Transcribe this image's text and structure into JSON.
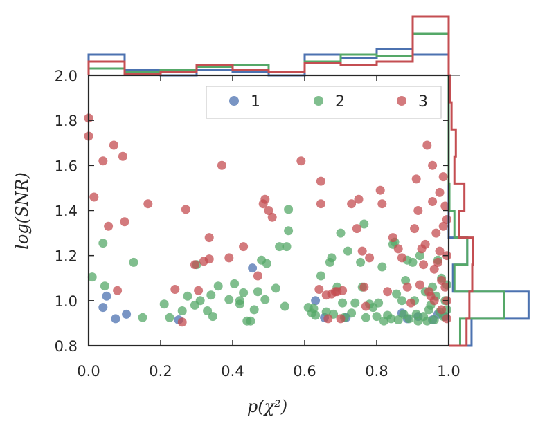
{
  "chart_data": {
    "type": "scatter",
    "xlabel": "p(χ²)",
    "ylabel": "log(SNR)",
    "xlim": [
      0.0,
      1.0
    ],
    "ylim": [
      0.8,
      2.0
    ],
    "x_ticks": [
      0.0,
      0.2,
      0.4,
      0.6,
      0.8,
      1.0
    ],
    "x_tick_labels": [
      "0.0",
      "0.2",
      "0.4",
      "0.6",
      "0.8",
      "1.0"
    ],
    "y_ticks": [
      0.8,
      1.0,
      1.2,
      1.4,
      1.6,
      1.8,
      2.0
    ],
    "y_tick_labels": [
      "0.8",
      "1.0",
      "1.2",
      "1.4",
      "1.6",
      "1.8",
      "2.0"
    ],
    "legend": {
      "location": "top-right",
      "entries": [
        "1",
        "2",
        "3"
      ]
    },
    "series": [
      {
        "name": "1",
        "color": "#4C72B0",
        "points": [
          [
            0.04,
            0.97
          ],
          [
            0.05,
            1.02
          ],
          [
            0.075,
            0.92
          ],
          [
            0.105,
            0.94
          ],
          [
            0.25,
            0.915
          ],
          [
            0.455,
            1.145
          ],
          [
            0.63,
            1.0
          ],
          [
            0.655,
            0.925
          ],
          [
            0.715,
            0.925
          ],
          [
            0.87,
            0.945
          ],
          [
            0.885,
            0.92
          ],
          [
            0.915,
            0.93
          ],
          [
            0.955,
            0.915
          ],
          [
            0.97,
            0.94
          ],
          [
            0.99,
            0.93
          ]
        ]
      },
      {
        "name": "2",
        "color": "#55A868",
        "points": [
          [
            0.01,
            1.105
          ],
          [
            0.04,
            1.255
          ],
          [
            0.045,
            1.065
          ],
          [
            0.125,
            1.17
          ],
          [
            0.15,
            0.925
          ],
          [
            0.21,
            0.985
          ],
          [
            0.225,
            0.925
          ],
          [
            0.26,
            0.955
          ],
          [
            0.275,
            1.02
          ],
          [
            0.295,
            0.98
          ],
          [
            0.3,
            1.16
          ],
          [
            0.31,
            1.0
          ],
          [
            0.33,
            0.955
          ],
          [
            0.34,
            1.025
          ],
          [
            0.345,
            0.93
          ],
          [
            0.36,
            1.065
          ],
          [
            0.39,
            1.005
          ],
          [
            0.405,
            1.075
          ],
          [
            0.42,
            0.985
          ],
          [
            0.42,
            1.0
          ],
          [
            0.43,
            1.035
          ],
          [
            0.44,
            0.91
          ],
          [
            0.45,
            0.91
          ],
          [
            0.46,
            0.96
          ],
          [
            0.47,
            1.04
          ],
          [
            0.48,
            1.18
          ],
          [
            0.49,
            1.005
          ],
          [
            0.495,
            1.165
          ],
          [
            0.52,
            1.055
          ],
          [
            0.53,
            1.24
          ],
          [
            0.545,
            0.975
          ],
          [
            0.55,
            1.24
          ],
          [
            0.555,
            1.31
          ],
          [
            0.555,
            1.405
          ],
          [
            0.61,
            0.97
          ],
          [
            0.62,
            0.945
          ],
          [
            0.625,
            0.965
          ],
          [
            0.63,
            0.935
          ],
          [
            0.645,
            1.11
          ],
          [
            0.66,
            0.95
          ],
          [
            0.67,
            1.17
          ],
          [
            0.675,
            1.19
          ],
          [
            0.68,
            0.94
          ],
          [
            0.69,
            1.06
          ],
          [
            0.7,
            1.3
          ],
          [
            0.705,
            0.99
          ],
          [
            0.71,
            0.925
          ],
          [
            0.72,
            1.22
          ],
          [
            0.73,
            0.945
          ],
          [
            0.74,
            0.99
          ],
          [
            0.755,
            1.17
          ],
          [
            0.76,
            1.06
          ],
          [
            0.765,
            1.34
          ],
          [
            0.77,
            0.925
          ],
          [
            0.78,
            0.985
          ],
          [
            0.79,
            0.97
          ],
          [
            0.8,
            0.93
          ],
          [
            0.805,
            0.99
          ],
          [
            0.815,
            1.15
          ],
          [
            0.82,
            0.91
          ],
          [
            0.83,
            0.935
          ],
          [
            0.84,
            0.92
          ],
          [
            0.845,
            1.25
          ],
          [
            0.85,
            1.26
          ],
          [
            0.855,
            1.03
          ],
          [
            0.86,
            0.915
          ],
          [
            0.87,
            1.0
          ],
          [
            0.875,
            0.94
          ],
          [
            0.88,
            1.09
          ],
          [
            0.885,
            1.18
          ],
          [
            0.89,
            0.92
          ],
          [
            0.9,
            1.17
          ],
          [
            0.905,
            1.0
          ],
          [
            0.91,
            0.94
          ],
          [
            0.915,
            0.91
          ],
          [
            0.92,
            1.2
          ],
          [
            0.93,
            0.93
          ],
          [
            0.935,
            1.04
          ],
          [
            0.94,
            0.91
          ],
          [
            0.945,
            0.96
          ],
          [
            0.95,
            0.98
          ],
          [
            0.955,
            1.06
          ],
          [
            0.96,
            0.915
          ],
          [
            0.965,
            1.02
          ],
          [
            0.97,
            1.18
          ],
          [
            0.975,
            0.95
          ],
          [
            0.98,
            1.1
          ],
          [
            0.985,
            0.93
          ],
          [
            0.99,
            1.0
          ],
          [
            0.995,
            0.96
          ],
          [
            0.995,
            1.07
          ]
        ]
      },
      {
        "name": "3",
        "color": "#C44E52",
        "points": [
          [
            0.0,
            1.81
          ],
          [
            0.0,
            1.73
          ],
          [
            0.015,
            1.46
          ],
          [
            0.04,
            1.62
          ],
          [
            0.055,
            1.33
          ],
          [
            0.07,
            1.69
          ],
          [
            0.08,
            1.045
          ],
          [
            0.095,
            1.64
          ],
          [
            0.1,
            1.35
          ],
          [
            0.165,
            1.43
          ],
          [
            0.24,
            1.05
          ],
          [
            0.26,
            0.905
          ],
          [
            0.27,
            1.405
          ],
          [
            0.295,
            1.16
          ],
          [
            0.305,
            1.045
          ],
          [
            0.32,
            1.175
          ],
          [
            0.335,
            1.185
          ],
          [
            0.335,
            1.28
          ],
          [
            0.37,
            1.6
          ],
          [
            0.39,
            1.19
          ],
          [
            0.43,
            1.24
          ],
          [
            0.47,
            1.11
          ],
          [
            0.485,
            1.43
          ],
          [
            0.49,
            1.45
          ],
          [
            0.5,
            1.4
          ],
          [
            0.51,
            1.37
          ],
          [
            0.59,
            1.62
          ],
          [
            0.64,
            1.05
          ],
          [
            0.645,
            1.43
          ],
          [
            0.645,
            1.53
          ],
          [
            0.66,
            1.025
          ],
          [
            0.665,
            0.92
          ],
          [
            0.675,
            1.03
          ],
          [
            0.685,
            1.04
          ],
          [
            0.69,
            1.04
          ],
          [
            0.7,
            0.92
          ],
          [
            0.705,
            1.045
          ],
          [
            0.73,
            1.43
          ],
          [
            0.745,
            1.32
          ],
          [
            0.75,
            1.45
          ],
          [
            0.76,
            1.22
          ],
          [
            0.765,
            1.06
          ],
          [
            0.77,
            0.975
          ],
          [
            0.78,
            1.19
          ],
          [
            0.81,
            1.49
          ],
          [
            0.815,
            1.43
          ],
          [
            0.83,
            1.04
          ],
          [
            0.845,
            1.28
          ],
          [
            0.86,
            1.23
          ],
          [
            0.87,
            1.19
          ],
          [
            0.885,
            1.06
          ],
          [
            0.895,
            0.99
          ],
          [
            0.905,
            1.32
          ],
          [
            0.91,
            1.54
          ],
          [
            0.915,
            1.4
          ],
          [
            0.92,
            1.07
          ],
          [
            0.925,
            1.23
          ],
          [
            0.93,
            1.16
          ],
          [
            0.935,
            1.25
          ],
          [
            0.94,
            1.69
          ],
          [
            0.945,
            1.04
          ],
          [
            0.95,
            1.02
          ],
          [
            0.955,
            1.6
          ],
          [
            0.955,
            1.44
          ],
          [
            0.96,
            1.14
          ],
          [
            0.96,
            1.0
          ],
          [
            0.965,
            1.3
          ],
          [
            0.97,
            1.17
          ],
          [
            0.975,
            1.48
          ],
          [
            0.975,
            1.22
          ],
          [
            0.98,
            1.09
          ],
          [
            0.98,
            0.96
          ],
          [
            0.985,
            1.55
          ],
          [
            0.985,
            1.33
          ],
          [
            0.99,
            1.42
          ],
          [
            0.99,
            1.06
          ],
          [
            0.995,
            1.2
          ],
          [
            0.995,
            1.0
          ],
          [
            0.995,
            1.36
          ],
          [
            0.995,
            0.92
          ]
        ]
      }
    ],
    "top_histograms": {
      "description": "normalized histogram of p(chi^2), 10 bins over 0-1",
      "bins": [
        0.0,
        0.1,
        0.2,
        0.3,
        0.4,
        0.5,
        0.6,
        0.7,
        0.8,
        0.9,
        1.0
      ],
      "series": [
        {
          "name": "1",
          "color": "#4C72B0",
          "values": [
            1.2,
            0.3,
            0.0,
            0.3,
            0.2,
            0.0,
            1.2,
            1.0,
            1.5,
            1.2
          ]
        },
        {
          "name": "2",
          "color": "#55A868",
          "values": [
            0.4,
            0.2,
            0.3,
            0.5,
            0.6,
            0.2,
            0.8,
            1.2,
            1.1,
            2.4
          ]
        },
        {
          "name": "3",
          "color": "#C44E52",
          "values": [
            0.8,
            0.1,
            0.2,
            0.6,
            0.3,
            0.2,
            0.7,
            0.6,
            0.8,
            3.4
          ]
        }
      ]
    },
    "right_histograms": {
      "description": "normalized histogram of log(SNR), 10 bins over 0.8-2.0",
      "bins": [
        0.8,
        0.92,
        1.04,
        1.16,
        1.28,
        1.4,
        1.52,
        1.64,
        1.76,
        1.88,
        2.0
      ],
      "series": [
        {
          "name": "1",
          "color": "#4C72B0",
          "values": [
            3.2,
            11.2,
            0.6,
            2.6,
            0.0,
            0.0,
            0.0,
            0.0,
            0.0,
            0.0
          ]
        },
        {
          "name": "2",
          "color": "#55A868",
          "values": [
            1.6,
            7.8,
            0.8,
            2.6,
            0.8,
            0.1,
            0.0,
            0.0,
            0.0,
            0.0
          ]
        },
        {
          "name": "3",
          "color": "#C44E52",
          "values": [
            2.5,
            2.9,
            3.3,
            3.4,
            1.5,
            2.2,
            0.8,
            1.0,
            0.4,
            0.2
          ]
        }
      ]
    }
  }
}
